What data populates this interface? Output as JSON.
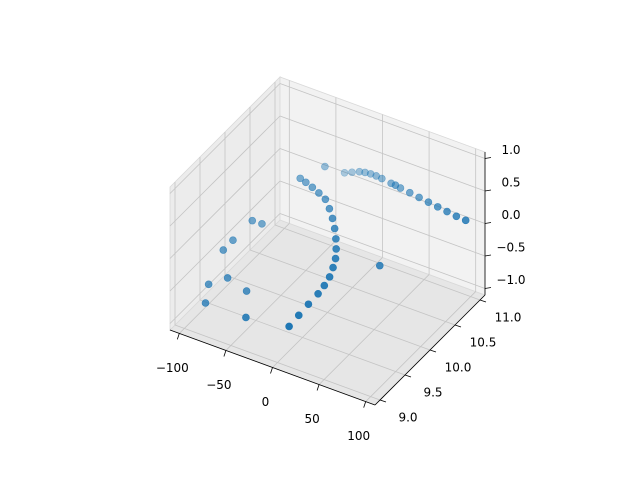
{
  "chart_data": {
    "type": "scatter3d",
    "series": [
      {
        "color": "#1f77b4",
        "x": [
          -40,
          -34,
          -27,
          -20,
          -13,
          -6,
          0,
          5,
          9,
          12,
          14,
          14,
          13,
          10,
          6,
          1,
          -4,
          -9,
          -30,
          -22,
          -14,
          -8,
          -2,
          4,
          10,
          20,
          30,
          40,
          50,
          60,
          70,
          80,
          90,
          100,
          -70,
          -65,
          -80,
          -85,
          -75,
          -90,
          -60,
          -88,
          -50,
          40,
          -35,
          30
        ],
        "y": [
          10.2,
          10.2,
          10.2,
          10.2,
          10.2,
          10.15,
          10.1,
          10.05,
          10,
          9.95,
          9.9,
          9.85,
          9.8,
          9.75,
          9.7,
          9.6,
          9.5,
          9.4,
          10.9,
          10.9,
          10.9,
          10.9,
          10.9,
          10.9,
          10.9,
          10.9,
          10.9,
          10.9,
          10.9,
          10.9,
          10.9,
          10.9,
          10.9,
          10.9,
          9.8,
          9.9,
          9.6,
          9.5,
          9.4,
          9.3,
          9.5,
          9.2,
          9.3,
          10.3,
          10.6,
          10.8
        ],
        "z": [
          0.6,
          0.57,
          0.53,
          0.48,
          0.42,
          0.35,
          0.27,
          0.18,
          0.08,
          -0.02,
          -0.12,
          -0.22,
          -0.33,
          -0.44,
          -0.55,
          -0.66,
          -0.78,
          -0.9,
          0.2,
          0.25,
          0.3,
          0.32,
          0.33,
          0.33,
          0.32,
          0.3,
          0.28,
          0.26,
          0.24,
          0.22,
          0.2,
          0.18,
          0.16,
          0.15,
          0.1,
          0,
          -0.1,
          -0.2,
          -0.5,
          -0.6,
          -0.7,
          -0.8,
          -0.9,
          -0.4,
          0.5,
          0.4
        ]
      }
    ],
    "xlim": [
      -110,
      110
    ],
    "ylim": [
      8.9,
      11.1
    ],
    "zlim": [
      -1.1,
      1.1
    ],
    "xticks": [
      {
        "value": -100,
        "label": "−100"
      },
      {
        "value": -50,
        "label": "−50"
      },
      0,
      50,
      100
    ],
    "yticks": [
      {
        "value": 9,
        "label": "9.0"
      },
      {
        "value": 9.5,
        "label": "9.5"
      },
      {
        "value": 10,
        "label": "10.0"
      },
      {
        "value": 10.5,
        "label": "10.5"
      },
      {
        "value": 11,
        "label": "11.0"
      }
    ],
    "zticks": [
      {
        "value": -1,
        "label": "−1.0"
      },
      {
        "value": -0.5,
        "label": "−0.5"
      },
      {
        "value": 0,
        "label": "0.0"
      },
      {
        "value": 0.5,
        "label": "0.5"
      },
      {
        "value": 1,
        "label": "1.0"
      }
    ],
    "grid": true
  }
}
